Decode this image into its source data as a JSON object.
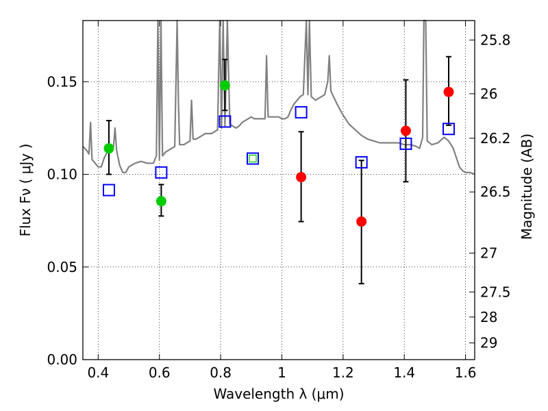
{
  "chart_data": {
    "type": "scatter",
    "xlabel": "Wavelength  λ (μm)",
    "ylabel": "Flux  Fν  ( μJy )",
    "ylabel_right": "Magnitude (AB)",
    "xlim": [
      0.35,
      1.63
    ],
    "ylim": [
      0.0,
      0.183
    ],
    "grid": true,
    "x_ticks": [
      0.4,
      0.6,
      0.8,
      1.0,
      1.2,
      1.4,
      1.6
    ],
    "x_tick_labels": [
      "0.4",
      "0.6",
      "0.8",
      "1",
      "1.2",
      "1.4",
      "1.6"
    ],
    "y_ticks": [
      0.0,
      0.05,
      0.1,
      0.15
    ],
    "y_tick_labels": [
      "0.00",
      "0.05",
      "0.10",
      "0.15"
    ],
    "right_ticks": [
      {
        "label": "25.8",
        "flux": 0.1725
      },
      {
        "label": "26",
        "flux": 0.1435
      },
      {
        "label": "26.2",
        "flux": 0.1195
      },
      {
        "label": "26.5",
        "flux": 0.0905
      },
      {
        "label": "27",
        "flux": 0.0575
      },
      {
        "label": "27.5",
        "flux": 0.0365
      },
      {
        "label": "28",
        "flux": 0.023
      },
      {
        "label": "29",
        "flux": 0.009
      }
    ],
    "series": [
      {
        "marker": "circle",
        "color": "#00cc00",
        "points": [
          {
            "x": 0.435,
            "y": 0.114,
            "yerr_low": 0.1,
            "yerr_high": 0.129
          },
          {
            "x": 0.606,
            "y": 0.0855,
            "yerr_low": 0.0775,
            "yerr_high": 0.0945
          },
          {
            "x": 0.814,
            "y": 0.148,
            "yerr_low": 0.1345,
            "yerr_high": 0.162
          }
        ]
      },
      {
        "marker": "circle",
        "color": "#ff0000",
        "points": [
          {
            "x": 1.063,
            "y": 0.0985,
            "yerr_low": 0.0745,
            "yerr_high": 0.123
          },
          {
            "x": 1.26,
            "y": 0.0745,
            "yerr_low": 0.041,
            "yerr_high": 0.1075
          },
          {
            "x": 1.405,
            "y": 0.1235,
            "yerr_low": 0.096,
            "yerr_high": 0.151
          },
          {
            "x": 1.545,
            "y": 0.1445,
            "yerr_low": 0.1265,
            "yerr_high": 0.1635
          }
        ]
      },
      {
        "marker": "open-square",
        "color": "#0000ff",
        "points": [
          {
            "x": 0.435,
            "y": 0.0915
          },
          {
            "x": 0.606,
            "y": 0.101
          },
          {
            "x": 0.814,
            "y": 0.1285
          },
          {
            "x": 0.905,
            "y": 0.1085
          },
          {
            "x": 1.063,
            "y": 0.1335
          },
          {
            "x": 1.26,
            "y": 0.1065
          },
          {
            "x": 1.405,
            "y": 0.1165
          },
          {
            "x": 1.545,
            "y": 0.1245
          }
        ]
      },
      {
        "marker": "small-open-square",
        "color": "#00cc00",
        "points": [
          {
            "x": 0.905,
            "y": 0.1085
          }
        ]
      },
      {
        "marker": "line",
        "color": "#808080",
        "points": [
          {
            "x": 0.35,
            "y": 0.115
          },
          {
            "x": 0.362,
            "y": 0.113
          },
          {
            "x": 0.37,
            "y": 0.111
          },
          {
            "x": 0.375,
            "y": 0.128
          },
          {
            "x": 0.38,
            "y": 0.108
          },
          {
            "x": 0.39,
            "y": 0.106
          },
          {
            "x": 0.4,
            "y": 0.104
          },
          {
            "x": 0.41,
            "y": 0.104
          },
          {
            "x": 0.42,
            "y": 0.109
          },
          {
            "x": 0.43,
            "y": 0.112
          },
          {
            "x": 0.44,
            "y": 0.113
          },
          {
            "x": 0.45,
            "y": 0.115
          },
          {
            "x": 0.455,
            "y": 0.125
          },
          {
            "x": 0.46,
            "y": 0.113
          },
          {
            "x": 0.47,
            "y": 0.105
          },
          {
            "x": 0.48,
            "y": 0.101
          },
          {
            "x": 0.49,
            "y": 0.101
          },
          {
            "x": 0.5,
            "y": 0.104
          },
          {
            "x": 0.52,
            "y": 0.106
          },
          {
            "x": 0.54,
            "y": 0.107
          },
          {
            "x": 0.56,
            "y": 0.106
          },
          {
            "x": 0.58,
            "y": 0.106
          },
          {
            "x": 0.59,
            "y": 0.11
          },
          {
            "x": 0.595,
            "y": 0.183
          },
          {
            "x": 0.6,
            "y": 0.108
          },
          {
            "x": 0.605,
            "y": 0.183
          },
          {
            "x": 0.61,
            "y": 0.11
          },
          {
            "x": 0.62,
            "y": 0.112
          },
          {
            "x": 0.63,
            "y": 0.113
          },
          {
            "x": 0.64,
            "y": 0.114
          },
          {
            "x": 0.65,
            "y": 0.115
          },
          {
            "x": 0.654,
            "y": 0.15
          },
          {
            "x": 0.658,
            "y": 0.183
          },
          {
            "x": 0.662,
            "y": 0.14
          },
          {
            "x": 0.666,
            "y": 0.116
          },
          {
            "x": 0.68,
            "y": 0.116
          },
          {
            "x": 0.69,
            "y": 0.117
          },
          {
            "x": 0.7,
            "y": 0.118
          },
          {
            "x": 0.705,
            "y": 0.14
          },
          {
            "x": 0.71,
            "y": 0.119
          },
          {
            "x": 0.72,
            "y": 0.119
          },
          {
            "x": 0.73,
            "y": 0.12
          },
          {
            "x": 0.74,
            "y": 0.121
          },
          {
            "x": 0.75,
            "y": 0.122
          },
          {
            "x": 0.76,
            "y": 0.122
          },
          {
            "x": 0.77,
            "y": 0.122
          },
          {
            "x": 0.78,
            "y": 0.123
          },
          {
            "x": 0.79,
            "y": 0.124
          },
          {
            "x": 0.797,
            "y": 0.183
          },
          {
            "x": 0.803,
            "y": 0.125
          },
          {
            "x": 0.808,
            "y": 0.183
          },
          {
            "x": 0.814,
            "y": 0.126
          },
          {
            "x": 0.822,
            "y": 0.183
          },
          {
            "x": 0.83,
            "y": 0.127
          },
          {
            "x": 0.84,
            "y": 0.126
          },
          {
            "x": 0.85,
            "y": 0.125
          },
          {
            "x": 0.86,
            "y": 0.126
          },
          {
            "x": 0.87,
            "y": 0.128
          },
          {
            "x": 0.88,
            "y": 0.129
          },
          {
            "x": 0.89,
            "y": 0.13
          },
          {
            "x": 0.9,
            "y": 0.131
          },
          {
            "x": 0.91,
            "y": 0.13
          },
          {
            "x": 0.92,
            "y": 0.13
          },
          {
            "x": 0.93,
            "y": 0.13
          },
          {
            "x": 0.945,
            "y": 0.13
          },
          {
            "x": 0.95,
            "y": 0.164
          },
          {
            "x": 0.955,
            "y": 0.131
          },
          {
            "x": 0.97,
            "y": 0.131
          },
          {
            "x": 0.99,
            "y": 0.131
          },
          {
            "x": 1.0,
            "y": 0.13
          },
          {
            "x": 1.01,
            "y": 0.13
          },
          {
            "x": 1.02,
            "y": 0.131
          },
          {
            "x": 1.03,
            "y": 0.135
          },
          {
            "x": 1.04,
            "y": 0.138
          },
          {
            "x": 1.05,
            "y": 0.14
          },
          {
            "x": 1.06,
            "y": 0.142
          },
          {
            "x": 1.07,
            "y": 0.143
          },
          {
            "x": 1.08,
            "y": 0.183
          },
          {
            "x": 1.085,
            "y": 0.143
          },
          {
            "x": 1.09,
            "y": 0.183
          },
          {
            "x": 1.096,
            "y": 0.142
          },
          {
            "x": 1.11,
            "y": 0.14
          },
          {
            "x": 1.12,
            "y": 0.141
          },
          {
            "x": 1.14,
            "y": 0.143
          },
          {
            "x": 1.15,
            "y": 0.15
          },
          {
            "x": 1.155,
            "y": 0.164
          },
          {
            "x": 1.16,
            "y": 0.145
          },
          {
            "x": 1.18,
            "y": 0.138
          },
          {
            "x": 1.2,
            "y": 0.132
          },
          {
            "x": 1.22,
            "y": 0.127
          },
          {
            "x": 1.24,
            "y": 0.124
          },
          {
            "x": 1.26,
            "y": 0.121
          },
          {
            "x": 1.28,
            "y": 0.119
          },
          {
            "x": 1.3,
            "y": 0.118
          },
          {
            "x": 1.32,
            "y": 0.117
          },
          {
            "x": 1.34,
            "y": 0.117
          },
          {
            "x": 1.36,
            "y": 0.117
          },
          {
            "x": 1.38,
            "y": 0.117
          },
          {
            "x": 1.4,
            "y": 0.116
          },
          {
            "x": 1.42,
            "y": 0.116
          },
          {
            "x": 1.44,
            "y": 0.115
          },
          {
            "x": 1.45,
            "y": 0.114
          },
          {
            "x": 1.46,
            "y": 0.12
          },
          {
            "x": 1.464,
            "y": 0.183
          },
          {
            "x": 1.47,
            "y": 0.183
          },
          {
            "x": 1.475,
            "y": 0.118
          },
          {
            "x": 1.49,
            "y": 0.116
          },
          {
            "x": 1.51,
            "y": 0.117
          },
          {
            "x": 1.53,
            "y": 0.12
          },
          {
            "x": 1.545,
            "y": 0.118
          },
          {
            "x": 1.56,
            "y": 0.114
          },
          {
            "x": 1.57,
            "y": 0.109
          },
          {
            "x": 1.58,
            "y": 0.104
          },
          {
            "x": 1.59,
            "y": 0.102
          },
          {
            "x": 1.6,
            "y": 0.101
          },
          {
            "x": 1.615,
            "y": 0.101
          },
          {
            "x": 1.63,
            "y": 0.1
          }
        ]
      }
    ]
  }
}
